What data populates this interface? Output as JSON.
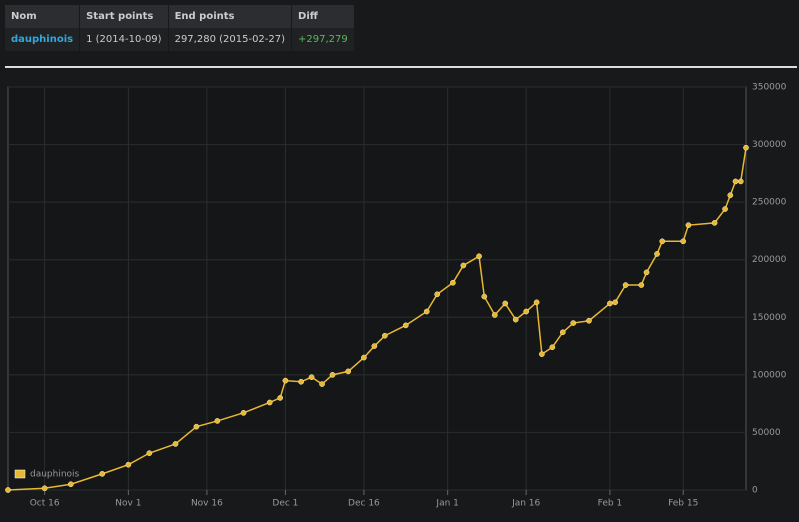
{
  "table": {
    "header": [
      "Nom",
      "Start points",
      "End points",
      "Diff"
    ],
    "rows": [
      [
        "dauphinois",
        "1 (2014-10-09)",
        "297,280 (2015-02-27)",
        "+297,279"
      ]
    ]
  },
  "chart_data": {
    "type": "line",
    "x": [
      "2014-10-09",
      "2014-10-16",
      "2014-10-21",
      "2014-10-27",
      "2014-11-01",
      "2014-11-05",
      "2014-11-10",
      "2014-11-14",
      "2014-11-18",
      "2014-11-23",
      "2014-11-28",
      "2014-11-30",
      "2014-12-01",
      "2014-12-04",
      "2014-12-06",
      "2014-12-08",
      "2014-12-10",
      "2014-12-13",
      "2014-12-16",
      "2014-12-18",
      "2014-12-20",
      "2014-12-24",
      "2014-12-28",
      "2014-12-30",
      "2015-01-02",
      "2015-01-04",
      "2015-01-07",
      "2015-01-08",
      "2015-01-10",
      "2015-01-12",
      "2015-01-14",
      "2015-01-16",
      "2015-01-18",
      "2015-01-19",
      "2015-01-21",
      "2015-01-23",
      "2015-01-25",
      "2015-01-28",
      "2015-02-01",
      "2015-02-02",
      "2015-02-04",
      "2015-02-07",
      "2015-02-08",
      "2015-02-10",
      "2015-02-11",
      "2015-02-15",
      "2015-02-16",
      "2015-02-21",
      "2015-02-23",
      "2015-02-24",
      "2015-02-25",
      "2015-02-26",
      "2015-02-27"
    ],
    "series": [
      {
        "name": "dauphinois",
        "color": "#e8b830",
        "values": [
          1,
          1500,
          5000,
          14000,
          22000,
          32000,
          40000,
          55000,
          60000,
          67000,
          76000,
          80000,
          95000,
          94000,
          98000,
          92000,
          100000,
          103000,
          115000,
          125000,
          134000,
          143000,
          155000,
          170000,
          180000,
          195000,
          203000,
          168000,
          152000,
          162000,
          148000,
          155000,
          163000,
          118000,
          124000,
          137000,
          145000,
          147000,
          162000,
          163000,
          178000,
          178000,
          189000,
          205000,
          216000,
          216000,
          230000,
          232000,
          244000,
          256000,
          268000,
          268000,
          297280
        ]
      }
    ],
    "xlim": [
      "2014-10-09",
      "2015-02-27"
    ],
    "xticks": [
      {
        "value": "2014-10-16",
        "label": "Oct 16"
      },
      {
        "value": "2014-11-01",
        "label": "Nov 1"
      },
      {
        "value": "2014-11-16",
        "label": "Nov 16"
      },
      {
        "value": "2014-12-01",
        "label": "Dec 1"
      },
      {
        "value": "2014-12-16",
        "label": "Dec 16"
      },
      {
        "value": "2015-01-01",
        "label": "Jan 1"
      },
      {
        "value": "2015-01-16",
        "label": "Jan 16"
      },
      {
        "value": "2015-02-01",
        "label": "Feb 1"
      },
      {
        "value": "2015-02-15",
        "label": "Feb 15"
      }
    ],
    "ylim": [
      0,
      350000
    ],
    "yticks": [
      0,
      50000,
      100000,
      150000,
      200000,
      250000,
      300000,
      350000
    ],
    "grid": true
  }
}
